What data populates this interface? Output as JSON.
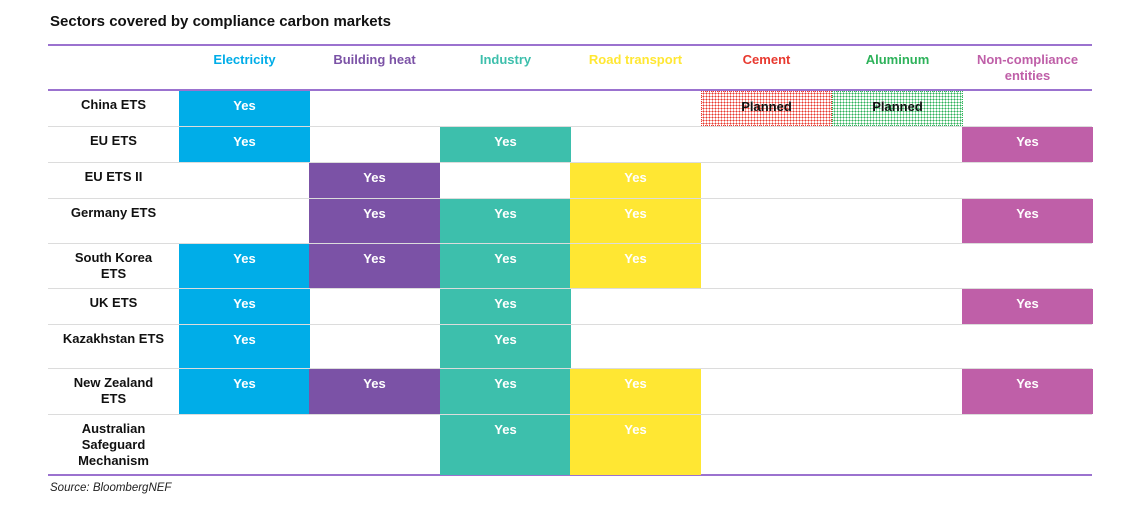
{
  "title": "Sectors covered by compliance carbon markets",
  "source": "Source: BloombergNEF",
  "chart_data": {
    "type": "table",
    "columns": [
      {
        "label": "Electricity",
        "color": "#00ade8"
      },
      {
        "label": "Building heat",
        "color": "#7b52a6"
      },
      {
        "label": "Industry",
        "color": "#3dbfac"
      },
      {
        "label": "Road transport",
        "color": "#ffe733"
      },
      {
        "label": "Cement",
        "color": "#e8392f"
      },
      {
        "label": "Aluminum",
        "color": "#2db25a"
      },
      {
        "label": "Non-compliance entities",
        "color": "#bf5fa8"
      }
    ],
    "rows": [
      {
        "label": "China ETS",
        "cells": [
          "Yes",
          "",
          "",
          "",
          "Planned",
          "Planned",
          ""
        ]
      },
      {
        "label": "EU ETS",
        "cells": [
          "Yes",
          "",
          "Yes",
          "",
          "",
          "",
          "Yes"
        ]
      },
      {
        "label": "EU ETS II",
        "cells": [
          "",
          "Yes",
          "",
          "Yes",
          "",
          "",
          ""
        ]
      },
      {
        "label": "Germany ETS",
        "cells": [
          "",
          "Yes",
          "Yes",
          "Yes",
          "",
          "",
          "Yes"
        ]
      },
      {
        "label": "South Korea ETS",
        "cells": [
          "Yes",
          "Yes",
          "Yes",
          "Yes",
          "",
          "",
          ""
        ]
      },
      {
        "label": "UK ETS",
        "cells": [
          "Yes",
          "",
          "Yes",
          "",
          "",
          "",
          "Yes"
        ]
      },
      {
        "label": "Kazakhstan ETS",
        "cells": [
          "Yes",
          "",
          "Yes",
          "",
          "",
          "",
          ""
        ]
      },
      {
        "label": "New Zealand ETS",
        "cells": [
          "Yes",
          "Yes",
          "Yes",
          "Yes",
          "",
          "",
          "Yes"
        ]
      },
      {
        "label": "Australian Safeguard Mechanism",
        "cells": [
          "",
          "",
          "Yes",
          "Yes",
          "",
          "",
          ""
        ]
      }
    ],
    "planned_colors": [
      "#e8392f",
      "#2db25a"
    ]
  }
}
